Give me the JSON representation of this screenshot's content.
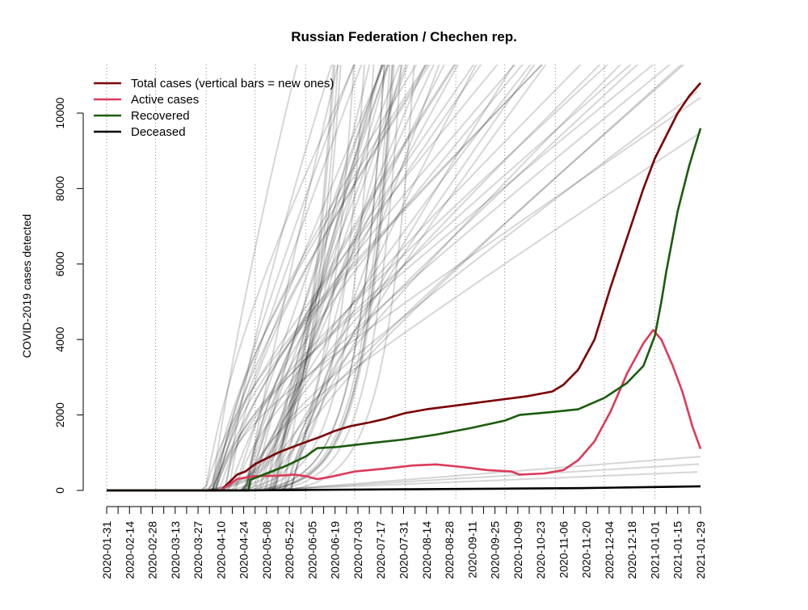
{
  "chart_data": {
    "type": "line",
    "title": "Russian Federation / Chechen rep.",
    "xlabel": "",
    "ylabel": "COVID-2019 cases detected",
    "x_start": "2020-01-31",
    "x_end": "2021-01-29",
    "ylim": [
      0,
      11200
    ],
    "y_ticks": [
      0,
      2000,
      4000,
      6000,
      8000,
      10000
    ],
    "x_tick_labels": [
      "2020-01-31",
      "2020-02-14",
      "2020-02-28",
      "2020-03-13",
      "2020-03-27",
      "2020-04-10",
      "2020-04-24",
      "2020-05-08",
      "2020-05-22",
      "2020-06-05",
      "2020-06-19",
      "2020-07-03",
      "2020-07-17",
      "2020-07-31",
      "2020-08-14",
      "2020-08-28",
      "2020-09-11",
      "2020-09-25",
      "2020-10-09",
      "2020-10-23",
      "2020-11-06",
      "2020-11-20",
      "2020-12-04",
      "2020-12-18",
      "2021-01-01",
      "2021-01-15",
      "2021-01-29"
    ],
    "vertical_gridlines": [
      "2020-01-31",
      "2020-03-01",
      "2020-04-01",
      "2020-05-01",
      "2020-06-01",
      "2020-07-01",
      "2020-08-01",
      "2020-09-01",
      "2020-10-01",
      "2020-11-01",
      "2020-12-01",
      "2021-01-01"
    ],
    "legend_position": "top-left",
    "series": [
      {
        "name": "Total cases (vertical bars = new ones)",
        "color": "#7b0000",
        "points": [
          [
            "2020-01-31",
            0
          ],
          [
            "2020-04-10",
            0
          ],
          [
            "2020-04-20",
            420
          ],
          [
            "2020-04-25",
            500
          ],
          [
            "2020-05-01",
            700
          ],
          [
            "2020-05-08",
            850
          ],
          [
            "2020-05-15",
            1000
          ],
          [
            "2020-05-22",
            1120
          ],
          [
            "2020-06-01",
            1280
          ],
          [
            "2020-06-10",
            1420
          ],
          [
            "2020-06-19",
            1580
          ],
          [
            "2020-06-28",
            1700
          ],
          [
            "2020-07-10",
            1800
          ],
          [
            "2020-07-20",
            1900
          ],
          [
            "2020-08-01",
            2050
          ],
          [
            "2020-08-14",
            2150
          ],
          [
            "2020-09-01",
            2250
          ],
          [
            "2020-09-15",
            2330
          ],
          [
            "2020-10-01",
            2420
          ],
          [
            "2020-10-15",
            2500
          ],
          [
            "2020-10-30",
            2620
          ],
          [
            "2020-11-06",
            2800
          ],
          [
            "2020-11-15",
            3200
          ],
          [
            "2020-11-25",
            4000
          ],
          [
            "2020-12-05",
            5400
          ],
          [
            "2020-12-15",
            6700
          ],
          [
            "2020-12-25",
            8000
          ],
          [
            "2021-01-01",
            8800
          ],
          [
            "2021-01-08",
            9400
          ],
          [
            "2021-01-15",
            10000
          ],
          [
            "2021-01-22",
            10450
          ],
          [
            "2021-01-29",
            10800
          ]
        ]
      },
      {
        "name": "Active cases",
        "color": "#dc3a5a",
        "points": [
          [
            "2020-01-31",
            0
          ],
          [
            "2020-04-10",
            0
          ],
          [
            "2020-04-20",
            300
          ],
          [
            "2020-04-26",
            350
          ],
          [
            "2020-05-01",
            380
          ],
          [
            "2020-05-15",
            390
          ],
          [
            "2020-05-25",
            420
          ],
          [
            "2020-06-01",
            380
          ],
          [
            "2020-06-08",
            300
          ],
          [
            "2020-06-15",
            350
          ],
          [
            "2020-07-01",
            500
          ],
          [
            "2020-07-20",
            580
          ],
          [
            "2020-08-05",
            660
          ],
          [
            "2020-08-20",
            690
          ],
          [
            "2020-09-05",
            620
          ],
          [
            "2020-09-20",
            540
          ],
          [
            "2020-10-05",
            500
          ],
          [
            "2020-10-10",
            420
          ],
          [
            "2020-10-25",
            450
          ],
          [
            "2020-11-06",
            540
          ],
          [
            "2020-11-15",
            800
          ],
          [
            "2020-11-25",
            1300
          ],
          [
            "2020-12-05",
            2100
          ],
          [
            "2020-12-15",
            3100
          ],
          [
            "2020-12-25",
            3900
          ],
          [
            "2020-12-31",
            4250
          ],
          [
            "2021-01-05",
            4000
          ],
          [
            "2021-01-09",
            3600
          ],
          [
            "2021-01-12",
            3300
          ],
          [
            "2021-01-18",
            2600
          ],
          [
            "2021-01-24",
            1700
          ],
          [
            "2021-01-29",
            1100
          ]
        ]
      },
      {
        "name": "Recovered",
        "color": "#1a5c0a",
        "points": [
          [
            "2020-01-31",
            0
          ],
          [
            "2020-04-27",
            0
          ],
          [
            "2020-04-28",
            280
          ],
          [
            "2020-05-08",
            450
          ],
          [
            "2020-05-20",
            650
          ],
          [
            "2020-06-01",
            900
          ],
          [
            "2020-06-08",
            1120
          ],
          [
            "2020-06-20",
            1150
          ],
          [
            "2020-07-10",
            1250
          ],
          [
            "2020-07-31",
            1350
          ],
          [
            "2020-08-20",
            1480
          ],
          [
            "2020-09-10",
            1650
          ],
          [
            "2020-10-01",
            1850
          ],
          [
            "2020-10-10",
            2000
          ],
          [
            "2020-10-30",
            2080
          ],
          [
            "2020-11-15",
            2150
          ],
          [
            "2020-12-01",
            2450
          ],
          [
            "2020-12-15",
            2850
          ],
          [
            "2020-12-25",
            3300
          ],
          [
            "2021-01-01",
            4100
          ],
          [
            "2021-01-05",
            5000
          ],
          [
            "2021-01-08",
            5800
          ],
          [
            "2021-01-15",
            7400
          ],
          [
            "2021-01-22",
            8600
          ],
          [
            "2021-01-29",
            9600
          ]
        ]
      },
      {
        "name": "Deceased",
        "color": "#000000",
        "points": [
          [
            "2020-01-31",
            0
          ],
          [
            "2020-04-25",
            0
          ],
          [
            "2020-06-01",
            12
          ],
          [
            "2020-08-01",
            30
          ],
          [
            "2020-10-01",
            48
          ],
          [
            "2020-11-15",
            60
          ],
          [
            "2020-12-15",
            80
          ],
          [
            "2021-01-29",
            110
          ]
        ]
      }
    ]
  }
}
